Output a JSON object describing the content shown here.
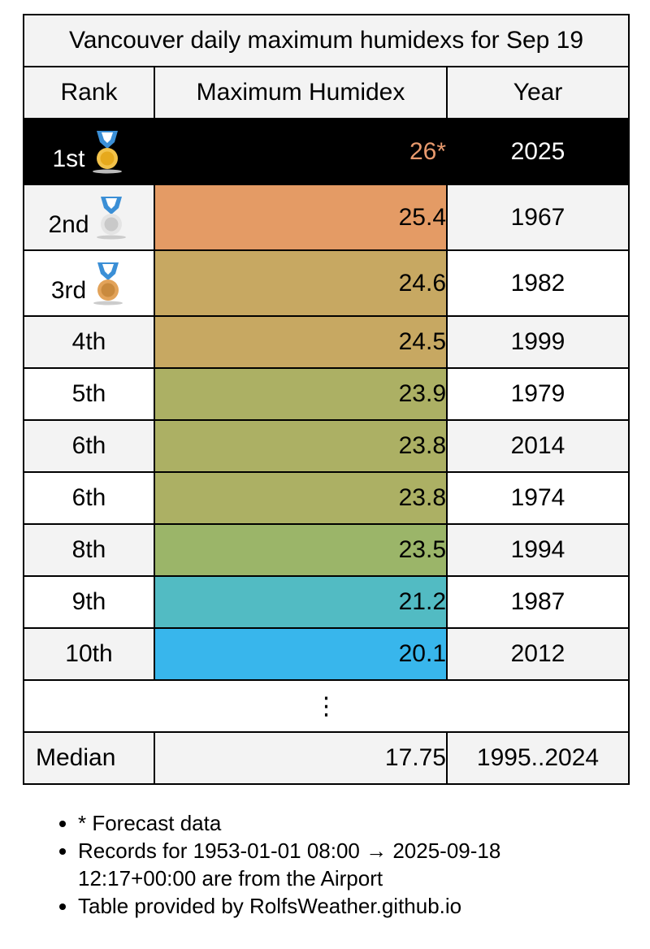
{
  "title": "Vancouver daily maximum humidexs for Sep 19",
  "headers": {
    "rank": "Rank",
    "value": "Maximum Humidex",
    "year": "Year"
  },
  "rows": [
    {
      "rank": "1st",
      "medal": "gold-medal-icon",
      "value": "26*",
      "year": "2025",
      "color": "#000000",
      "value_color": "#e89a6e"
    },
    {
      "rank": "2nd",
      "medal": "silver-medal-icon",
      "value": "25.4",
      "year": "1967",
      "color": "#e49b65"
    },
    {
      "rank": "3rd",
      "medal": "bronze-medal-icon",
      "value": "24.6",
      "year": "1982",
      "color": "#c7a862"
    },
    {
      "rank": "4th",
      "value": "24.5",
      "year": "1999",
      "color": "#c7a862"
    },
    {
      "rank": "5th",
      "value": "23.9",
      "year": "1979",
      "color": "#acb064"
    },
    {
      "rank": "6th",
      "value": "23.8",
      "year": "2014",
      "color": "#acb064"
    },
    {
      "rank": "6th",
      "value": "23.8",
      "year": "1974",
      "color": "#acb064"
    },
    {
      "rank": "8th",
      "value": "23.5",
      "year": "1994",
      "color": "#9bb569"
    },
    {
      "rank": "9th",
      "value": "21.2",
      "year": "1987",
      "color": "#52bbc3"
    },
    {
      "rank": "10th",
      "value": "20.1",
      "year": "2012",
      "color": "#38b6ec"
    }
  ],
  "ellipsis": "⋮",
  "median": {
    "label": "Median",
    "value": "17.75",
    "period": "1995..2024"
  },
  "notes": [
    "* Forecast data",
    "Records for 1953-01-01 08:00 → 2025-09-18 12:17+00:00 are from the Airport",
    "Table provided by RolfsWeather.github.io"
  ]
}
